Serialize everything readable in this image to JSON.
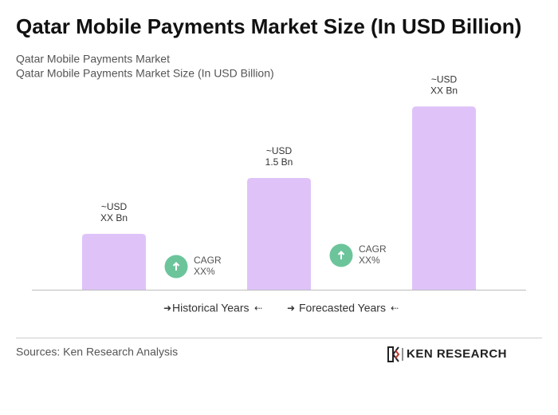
{
  "chart_data": {
    "type": "bar",
    "title": "Qatar Mobile Payments Market Size (In USD Billion)",
    "subtitle": [
      "Qatar Mobile Payments Market",
      "Qatar Mobile Payments Market Size (In USD Billion)"
    ],
    "categories": [
      null,
      null,
      null
    ],
    "values": [
      0.75,
      1.5,
      2.46
    ],
    "value_labels": [
      [
        "~USD",
        "XX Bn"
      ],
      [
        "~USD",
        "1.5 Bn"
      ],
      [
        "~USD",
        "XX Bn"
      ]
    ],
    "color": "#dfc3f8",
    "ylim": [
      0,
      2.5
    ],
    "annotations": [
      {
        "lines": [
          "CAGR",
          "XX%"
        ],
        "color": "#6cc49b"
      },
      {
        "lines": [
          "CAGR",
          "XX%"
        ],
        "color": "#6cc49b"
      }
    ],
    "legend": [
      "Historical Years",
      "Forecasted Years"
    ],
    "source": "Sources: Ken Research Analysis",
    "logo": "KEN RESEARCH"
  }
}
